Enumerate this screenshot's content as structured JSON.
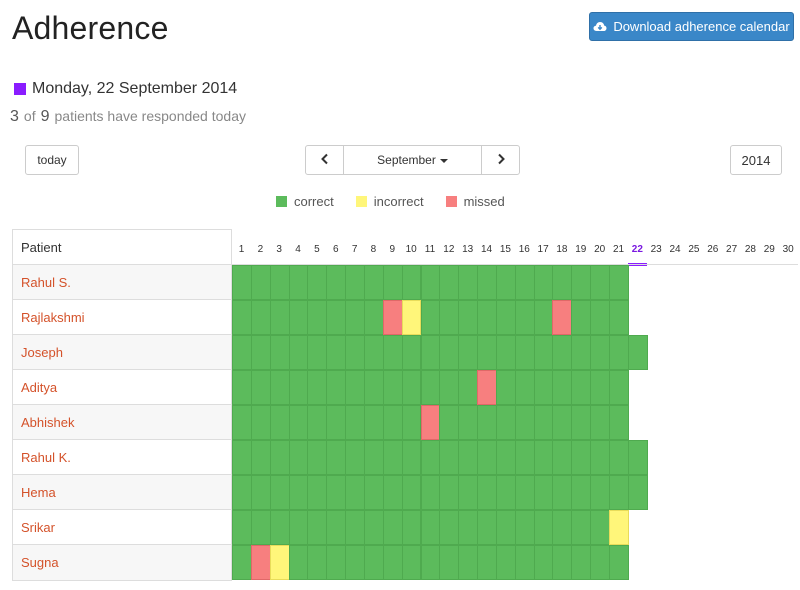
{
  "page": {
    "title": "Adherence",
    "download_label": "Download adherence calendar",
    "date_text": "Monday, 22 September 2014",
    "responded": {
      "count": "3",
      "of": "of",
      "total": "9",
      "suffix": "patients have responded today"
    },
    "today_label": "today",
    "month_label": "September",
    "year_label": "2014"
  },
  "legend": [
    {
      "label": "correct",
      "status": "correct"
    },
    {
      "label": "incorrect",
      "status": "incorrect"
    },
    {
      "label": "missed",
      "status": "missed"
    }
  ],
  "colors": {
    "correct": "#5cbb5c",
    "incorrect": "#fff67a",
    "missed": "#f77f7f",
    "today": "#8a1cff",
    "accent": "#3a87c8"
  },
  "icons": {
    "download": "cloud-download-icon",
    "prev": "chevron-left-icon",
    "next": "chevron-right-icon",
    "dropdown": "caret-down-icon"
  },
  "calendar": {
    "header_label": "Patient",
    "days": [
      1,
      2,
      3,
      4,
      5,
      6,
      7,
      8,
      9,
      10,
      11,
      12,
      13,
      14,
      15,
      16,
      17,
      18,
      19,
      20,
      21,
      22,
      23,
      24,
      25,
      26,
      27,
      28,
      29,
      30
    ],
    "today_day": 22,
    "patients": [
      {
        "name": "Rahul S.",
        "recorded_days": 21,
        "exceptions": {}
      },
      {
        "name": "Rajlakshmi",
        "recorded_days": 21,
        "exceptions": {
          "9": "missed",
          "10": "incorrect",
          "18": "missed"
        }
      },
      {
        "name": "Joseph",
        "recorded_days": 22,
        "exceptions": {}
      },
      {
        "name": "Aditya",
        "recorded_days": 21,
        "exceptions": {
          "14": "missed"
        }
      },
      {
        "name": "Abhishek",
        "recorded_days": 21,
        "exceptions": {
          "11": "missed"
        }
      },
      {
        "name": "Rahul K.",
        "recorded_days": 22,
        "exceptions": {}
      },
      {
        "name": "Hema",
        "recorded_days": 22,
        "exceptions": {}
      },
      {
        "name": "Srikar",
        "recorded_days": 21,
        "exceptions": {
          "21": "incorrect"
        }
      },
      {
        "name": "Sugna",
        "recorded_days": 21,
        "exceptions": {
          "2": "missed",
          "3": "incorrect"
        }
      }
    ]
  }
}
